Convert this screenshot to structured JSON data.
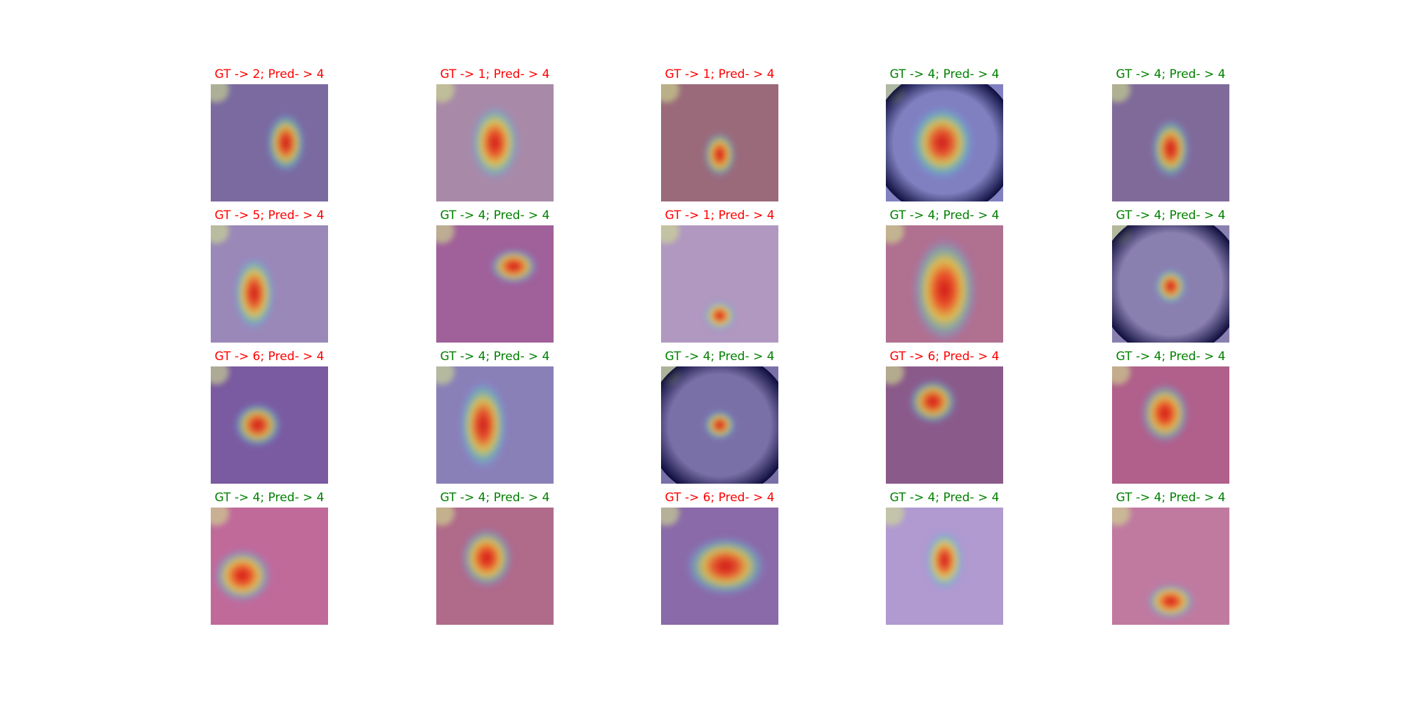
{
  "panels": [
    {
      "title": "GT -> 2; Pred- > 4",
      "color": "#ff0000"
    },
    {
      "title": "GT -> 1; Pred- > 4",
      "color": "#ff0000"
    },
    {
      "title": "GT -> 1; Pred- > 4",
      "color": "#ff0000"
    },
    {
      "title": "GT -> 4; Pred- > 4",
      "color": "#008000"
    },
    {
      "title": "GT -> 4; Pred- > 4",
      "color": "#008000"
    },
    {
      "title": "GT -> 5; Pred- > 4",
      "color": "#ff0000"
    },
    {
      "title": "GT -> 4; Pred- > 4",
      "color": "#008000"
    },
    {
      "title": "GT -> 1; Pred- > 4",
      "color": "#ff0000"
    },
    {
      "title": "GT -> 4; Pred- > 4",
      "color": "#008000"
    },
    {
      "title": "GT -> 4; Pred- > 4",
      "color": "#008000"
    },
    {
      "title": "GT -> 6; Pred- > 4",
      "color": "#ff0000"
    },
    {
      "title": "GT -> 4; Pred- > 4",
      "color": "#008000"
    },
    {
      "title": "GT -> 4; Pred- > 4",
      "color": "#008000"
    },
    {
      "title": "GT -> 6; Pred- > 4",
      "color": "#ff0000"
    },
    {
      "title": "GT -> 4; Pred- > 4",
      "color": "#008000"
    },
    {
      "title": "GT -> 4; Pred- > 4",
      "color": "#008000"
    },
    {
      "title": "GT -> 4; Pred- > 4",
      "color": "#008000"
    },
    {
      "title": "GT -> 6; Pred- > 4",
      "color": "#ff0000"
    },
    {
      "title": "GT -> 4; Pred- > 4",
      "color": "#008000"
    },
    {
      "title": "GT -> 4; Pred- > 4",
      "color": "#008000"
    }
  ]
}
